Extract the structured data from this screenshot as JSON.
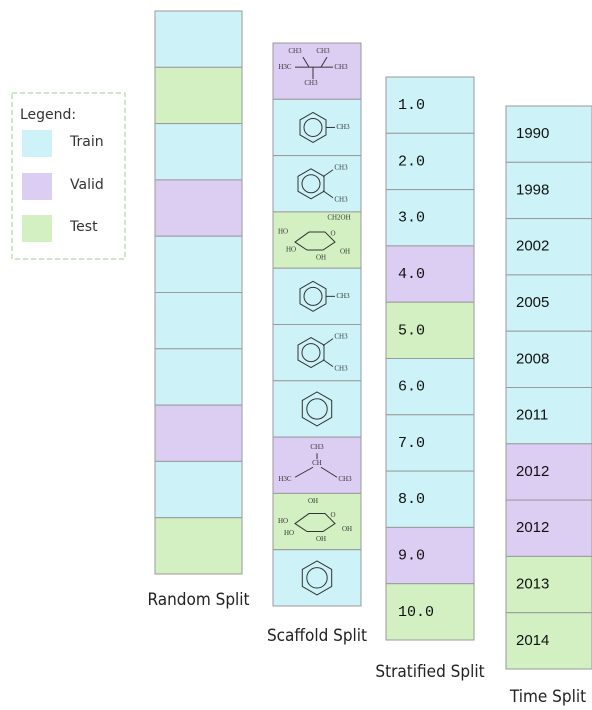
{
  "legend": {
    "title": "Legend:",
    "items": [
      "Train",
      "Valid",
      "Test"
    ]
  },
  "columns": [
    {
      "label": "Random Split"
    },
    {
      "label": "Scaffold Split",
      "molecules": [
        [
          "CH3",
          "CH3",
          "H3C",
          "CH3",
          "CH3"
        ],
        [
          "CH3"
        ],
        [
          "CH3",
          "CH3"
        ],
        [
          "CH2OH",
          "O",
          "HO",
          "HO",
          "OH",
          "OH"
        ],
        [
          "CH3"
        ],
        [
          "CH3",
          "CH3"
        ],
        [],
        [
          "CH3",
          "CH",
          "H3C",
          "CH3"
        ],
        [
          "OH",
          "O",
          "HO",
          "HO",
          "OH",
          "OH"
        ],
        []
      ]
    },
    {
      "label": "Stratified Split",
      "cells": [
        "1.0",
        "2.0",
        "3.0",
        "4.0",
        "5.0",
        "6.0",
        "7.0",
        "8.0",
        "9.0",
        "10.0"
      ]
    },
    {
      "label": "Time Split",
      "cells": [
        "1990",
        "1998",
        "2002",
        "2005",
        "2008",
        "2011",
        "2012",
        "2012",
        "2013",
        "2014"
      ]
    }
  ]
}
